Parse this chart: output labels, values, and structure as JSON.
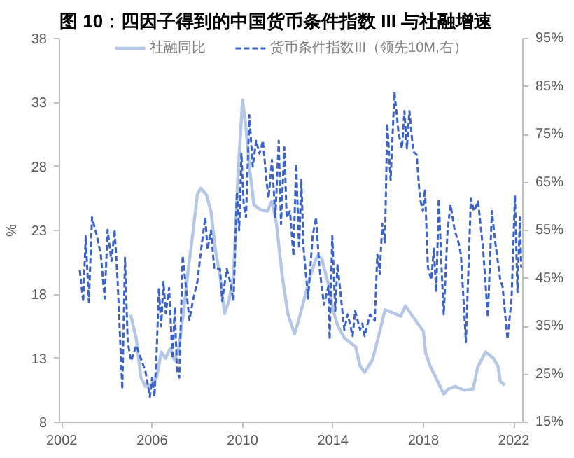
{
  "chart_data": {
    "type": "line",
    "title": "图 10：四因子得到的中国货币条件指数 III 与社融增速",
    "ylabel": "%",
    "xlim": [
      2001.9,
      2022.4
    ],
    "xticks": [
      2002,
      2006,
      2010,
      2014,
      2018,
      2022
    ],
    "ylim": [
      8,
      38
    ],
    "yticks": [
      8,
      13,
      18,
      23,
      28,
      33,
      38
    ],
    "y2lim": [
      15,
      95
    ],
    "y2ticks": [
      {
        "value": 15,
        "label": "15%"
      },
      {
        "value": 25,
        "label": "25%"
      },
      {
        "value": 35,
        "label": "35%"
      },
      {
        "value": 45,
        "label": "45%"
      },
      {
        "value": 55,
        "label": "55%"
      },
      {
        "value": 65,
        "label": "65%"
      },
      {
        "value": 75,
        "label": "75%"
      },
      {
        "value": 85,
        "label": "85%"
      },
      {
        "value": 95,
        "label": "95%"
      }
    ],
    "grid": false,
    "legend": "top",
    "marker": "none",
    "series": [
      {
        "name": "社融同比",
        "color": "#b4c7e7",
        "line_style": "solid",
        "x": [
          2005.05,
          2005.3,
          2005.5,
          2005.7,
          2006.0,
          2006.2,
          2006.4,
          2006.6,
          2006.8,
          2007.0,
          2007.2,
          2007.4,
          2007.6,
          2007.8,
          2008.0,
          2008.15,
          2008.4,
          2008.6,
          2008.8,
          2009.0,
          2009.2,
          2009.4,
          2009.6,
          2009.8,
          2010.0,
          2010.15,
          2010.3,
          2010.5,
          2010.8,
          2011.1,
          2011.3,
          2011.5,
          2011.75,
          2012.0,
          2012.3,
          2012.5,
          2012.8,
          2013.0,
          2013.3,
          2013.5,
          2013.8,
          2014.0,
          2014.2,
          2014.5,
          2015.0,
          2015.2,
          2015.4,
          2015.75,
          2016.07,
          2016.3,
          2016.6,
          2017.0,
          2017.2,
          2017.6,
          2018.0,
          2018.1,
          2018.3,
          2018.9,
          2019.1,
          2019.4,
          2019.8,
          2020.2,
          2020.4,
          2020.75,
          2021.1,
          2021.3,
          2021.4,
          2021.6
        ],
        "values": [
          16.4,
          14.5,
          11.5,
          10.8,
          11,
          11.5,
          13.5,
          13,
          13.8,
          12.8,
          14,
          16.8,
          20,
          22.8,
          25.8,
          26.3,
          25.8,
          24.5,
          21.5,
          19.5,
          16.5,
          17.5,
          19.5,
          27.4,
          33.2,
          31,
          28,
          25,
          24.6,
          24.5,
          25.3,
          23.5,
          19.5,
          16.5,
          14.9,
          16.1,
          18.1,
          19.5,
          21,
          20.8,
          18.8,
          16.8,
          15.6,
          14.6,
          13.9,
          12.4,
          11.9,
          12.9,
          15.1,
          16.8,
          16.6,
          16.3,
          17.1,
          16.1,
          15.1,
          13.4,
          12.4,
          10.2,
          10.6,
          10.8,
          10.5,
          10.6,
          12.3,
          13.5,
          13,
          12.4,
          11.2,
          10.9
        ]
      },
      {
        "name": "货币条件指数III（领先10M,右）",
        "color": "#3a62c8",
        "line_style": "dashed",
        "axis": "y2",
        "x": [
          2002.8,
          2002.95,
          2003.06,
          2003.2,
          2003.34,
          2003.56,
          2003.73,
          2003.9,
          2004.03,
          2004.2,
          2004.34,
          2004.47,
          2004.68,
          2004.8,
          2004.92,
          2005.07,
          2005.3,
          2005.7,
          2005.9,
          2006.0,
          2006.1,
          2006.2,
          2006.3,
          2006.4,
          2006.5,
          2006.6,
          2006.75,
          2006.9,
          2007.0,
          2007.1,
          2007.2,
          2007.35,
          2007.5,
          2007.65,
          2007.8,
          2008.0,
          2008.2,
          2008.35,
          2008.45,
          2008.6,
          2008.75,
          2009.0,
          2009.1,
          2009.3,
          2009.45,
          2009.6,
          2009.75,
          2009.85,
          2009.95,
          2010.05,
          2010.15,
          2010.3,
          2010.45,
          2010.6,
          2010.75,
          2010.9,
          2011.05,
          2011.15,
          2011.3,
          2011.45,
          2011.6,
          2011.7,
          2011.85,
          2011.95,
          2012.1,
          2012.25,
          2012.37,
          2012.5,
          2012.6,
          2012.7,
          2012.9,
          2013.1,
          2013.25,
          2013.4,
          2013.6,
          2013.8,
          2013.85,
          2013.97,
          2014.1,
          2014.2,
          2014.33,
          2014.5,
          2014.65,
          2014.87,
          2014.98,
          2015.2,
          2015.3,
          2015.4,
          2015.64,
          2015.85,
          2015.96,
          2016.07,
          2016.18,
          2016.3,
          2016.4,
          2016.55,
          2016.72,
          2016.9,
          2017.05,
          2017.16,
          2017.27,
          2017.38,
          2017.55,
          2017.7,
          2017.85,
          2017.98,
          2018.07,
          2018.2,
          2018.35,
          2018.46,
          2018.57,
          2018.68,
          2018.79,
          2018.9,
          2019.07,
          2019.2,
          2019.38,
          2019.55,
          2019.66,
          2019.88,
          2020.1,
          2020.24,
          2020.42,
          2020.64,
          2020.85,
          2021.03,
          2021.18,
          2021.4,
          2021.5,
          2021.72,
          2021.9,
          2022.05,
          2022.16,
          2022.27,
          2022.33
        ],
        "values": [
          46.7,
          40.1,
          53.8,
          40.1,
          57.7,
          53.8,
          49.9,
          40.8,
          55.1,
          48.6,
          55.1,
          44.7,
          21.9,
          49.3,
          31.7,
          27.8,
          31,
          25.7,
          20.3,
          24.3,
          20.3,
          29.7,
          43,
          35,
          44.3,
          37.7,
          43,
          28.3,
          39,
          25.7,
          24.3,
          49.7,
          43,
          36.3,
          40.3,
          44.3,
          52.3,
          57.7,
          51,
          55,
          47,
          47,
          40.3,
          47,
          44.3,
          40.3,
          63,
          55,
          71,
          60.3,
          57.7,
          79,
          68.3,
          73.7,
          71,
          73.7,
          65.7,
          61.7,
          69.7,
          57.7,
          73.7,
          56.3,
          72.3,
          57.7,
          59,
          49.7,
          68.8,
          51.2,
          65.5,
          51.2,
          40.8,
          53.8,
          57.7,
          47.3,
          39.5,
          43.4,
          32.3,
          53.8,
          38.2,
          48,
          42.1,
          34.3,
          37.5,
          33,
          38.2,
          34.3,
          35.6,
          33,
          37.5,
          36.2,
          50,
          46,
          56.4,
          52.5,
          77.3,
          65.5,
          83.8,
          75.3,
          72.1,
          79.9,
          72.1,
          79.9,
          71.4,
          70.8,
          61.6,
          59,
          63.6,
          47.3,
          44.7,
          51.2,
          42.1,
          61.6,
          48.6,
          37.5,
          55.1,
          60.3,
          55.1,
          52.5,
          50,
          31.7,
          61.6,
          59,
          61,
          51.2,
          36.9,
          59,
          52.5,
          44.7,
          43.4,
          32.3,
          40.8,
          62.3,
          42.1,
          57.7,
          47.3
        ]
      }
    ]
  }
}
